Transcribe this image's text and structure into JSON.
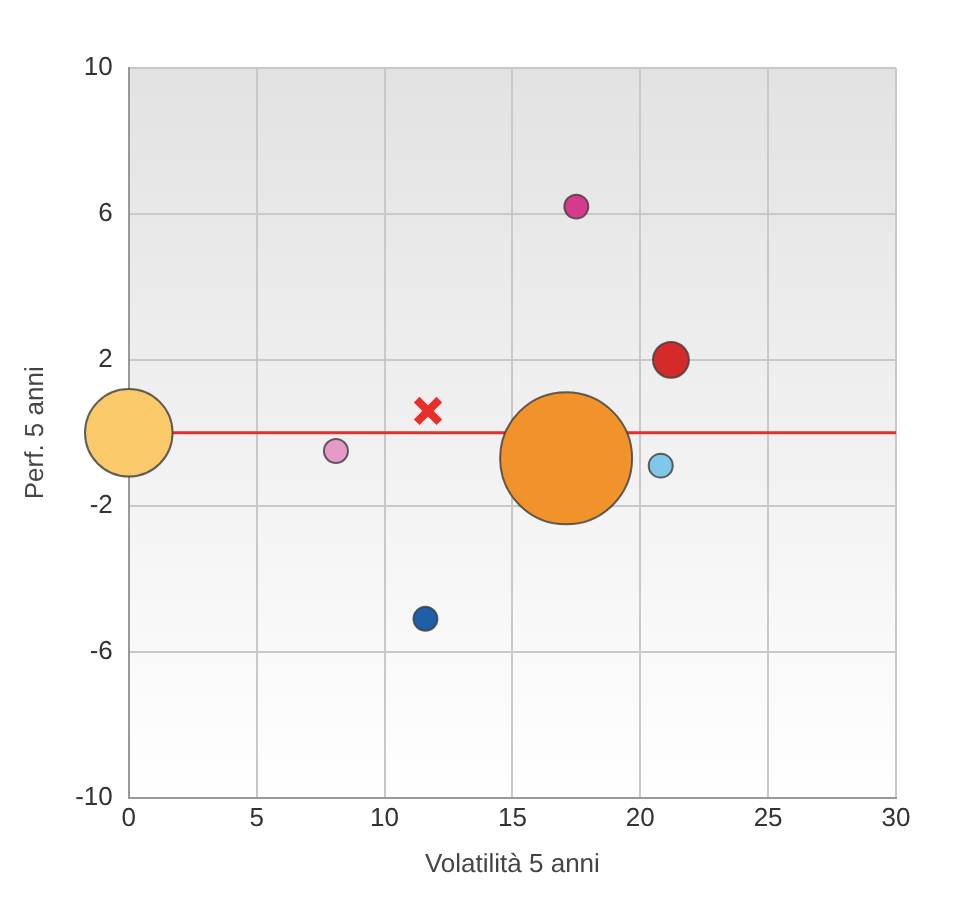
{
  "chart_data": {
    "type": "bubble",
    "xlabel": "Volatilità 5 anni",
    "ylabel": "Perf. 5 anni",
    "xlim": [
      0,
      30
    ],
    "xticks": [
      0,
      5,
      10,
      15,
      20,
      25,
      30
    ],
    "ylim": [
      -10,
      10
    ],
    "yticks": [
      -10,
      -6,
      -2,
      2,
      6,
      10
    ],
    "grid": true,
    "legend": false,
    "ref_lines": [
      {
        "axis": "y",
        "value": 0,
        "color": "#e03030"
      }
    ],
    "series": [
      {
        "type": "bubble",
        "x": [
          0,
          8.1,
          11.6,
          17.5,
          17.1,
          20.8,
          21.2
        ],
        "values": [
          0,
          -0.5,
          -5.1,
          6.2,
          -0.7,
          -0.9,
          2.0
        ],
        "sizes": [
          0.44,
          0.033,
          0.033,
          0.033,
          1,
          0.033,
          0.074
        ],
        "colors": [
          "#f9c96a",
          "#e79ac8",
          "#1f5fa8",
          "#d63a8a",
          "#f2922a",
          "#7fc8ea",
          "#d42a2a"
        ]
      },
      {
        "type": "scatter",
        "x": [
          11.7
        ],
        "values": [
          0.6
        ],
        "color": "#e8302a",
        "marker": "cross"
      }
    ]
  }
}
